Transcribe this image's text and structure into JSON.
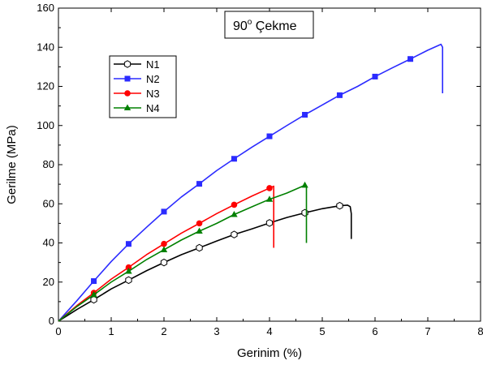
{
  "chart_data": {
    "type": "line",
    "title_main": "90",
    "title_sup": "o",
    "title_rest": " Çekme",
    "xlabel": "Gerinim (%)",
    "ylabel": "Gerilme (MPa)",
    "xlim": [
      0,
      8
    ],
    "ylim": [
      0,
      160
    ],
    "xticks": [
      0,
      1,
      2,
      3,
      4,
      5,
      6,
      7,
      8
    ],
    "yticks": [
      0,
      20,
      40,
      60,
      80,
      100,
      120,
      140,
      160
    ],
    "grid": false,
    "legend_position": "upper-left",
    "series": [
      {
        "name": "N1",
        "color": "#000000",
        "marker": "hexagon-open",
        "x": [
          0,
          0.35,
          0.67,
          1,
          1.33,
          1.67,
          2,
          2.33,
          2.67,
          3,
          3.33,
          3.67,
          4,
          4.33,
          4.67,
          5,
          5.33,
          5.48,
          5.53,
          5.55,
          5.55
        ],
        "y": [
          0,
          6,
          11,
          16.5,
          21,
          25.8,
          30,
          34,
          37.5,
          41,
          44.3,
          47.2,
          50.2,
          53,
          55.4,
          57.5,
          59,
          59.3,
          58.5,
          55,
          42
        ],
        "marker_x": [
          0.67,
          1.33,
          2,
          2.67,
          3.33,
          4,
          4.67,
          5.33
        ],
        "marker_y": [
          11,
          21,
          30,
          37.5,
          44.3,
          50.2,
          55.4,
          59
        ]
      },
      {
        "name": "N2",
        "color": "#2b2bff",
        "marker": "square",
        "x": [
          0,
          0.35,
          0.67,
          1,
          1.33,
          1.67,
          2,
          2.33,
          2.67,
          3,
          3.33,
          3.67,
          4,
          4.33,
          4.67,
          5,
          5.33,
          5.67,
          6,
          6.33,
          6.67,
          7,
          7.25,
          7.28,
          7.28
        ],
        "y": [
          0,
          10.5,
          20.5,
          30.5,
          39.5,
          48,
          56,
          63.5,
          70.2,
          77,
          83,
          89,
          94.5,
          100,
          105.5,
          110.5,
          115.5,
          120,
          125,
          129.5,
          134,
          138.5,
          141.5,
          140,
          116.5
        ],
        "marker_x": [
          0.67,
          1.33,
          2,
          2.67,
          3.33,
          4,
          4.67,
          5.33,
          6,
          6.67
        ],
        "marker_y": [
          20.5,
          39.5,
          56,
          70.2,
          83,
          94.5,
          105.5,
          115.5,
          125,
          134
        ]
      },
      {
        "name": "N3",
        "color": "#ff0000",
        "marker": "circle",
        "x": [
          0,
          0.35,
          0.67,
          1,
          1.33,
          1.67,
          2,
          2.33,
          2.67,
          3,
          3.33,
          3.67,
          4,
          4.08,
          4.08
        ],
        "y": [
          0,
          8,
          14.5,
          21.5,
          27.5,
          34,
          39.5,
          45,
          50,
          55,
          59.5,
          64,
          68,
          69,
          37.5
        ],
        "marker_x": [
          0.67,
          1.33,
          2,
          2.67,
          3.33,
          4
        ],
        "marker_y": [
          14.5,
          27.5,
          39.5,
          50,
          59.5,
          68
        ]
      },
      {
        "name": "N4",
        "color": "#008000",
        "marker": "triangle",
        "x": [
          0,
          0.35,
          0.67,
          1,
          1.33,
          1.67,
          2,
          2.33,
          2.67,
          3,
          3.33,
          3.67,
          4,
          4.33,
          4.67,
          4.7,
          4.7
        ],
        "y": [
          0,
          7.5,
          13.5,
          20,
          25.5,
          31.5,
          36.5,
          41.5,
          46,
          50,
          54.5,
          58.5,
          62.3,
          65.5,
          69.5,
          69,
          40
        ],
        "marker_x": [
          0.67,
          1.33,
          2,
          2.67,
          3.33,
          4,
          4.67
        ],
        "marker_y": [
          13.5,
          25.5,
          36.5,
          46,
          54.5,
          62.3,
          69.5
        ]
      }
    ]
  }
}
